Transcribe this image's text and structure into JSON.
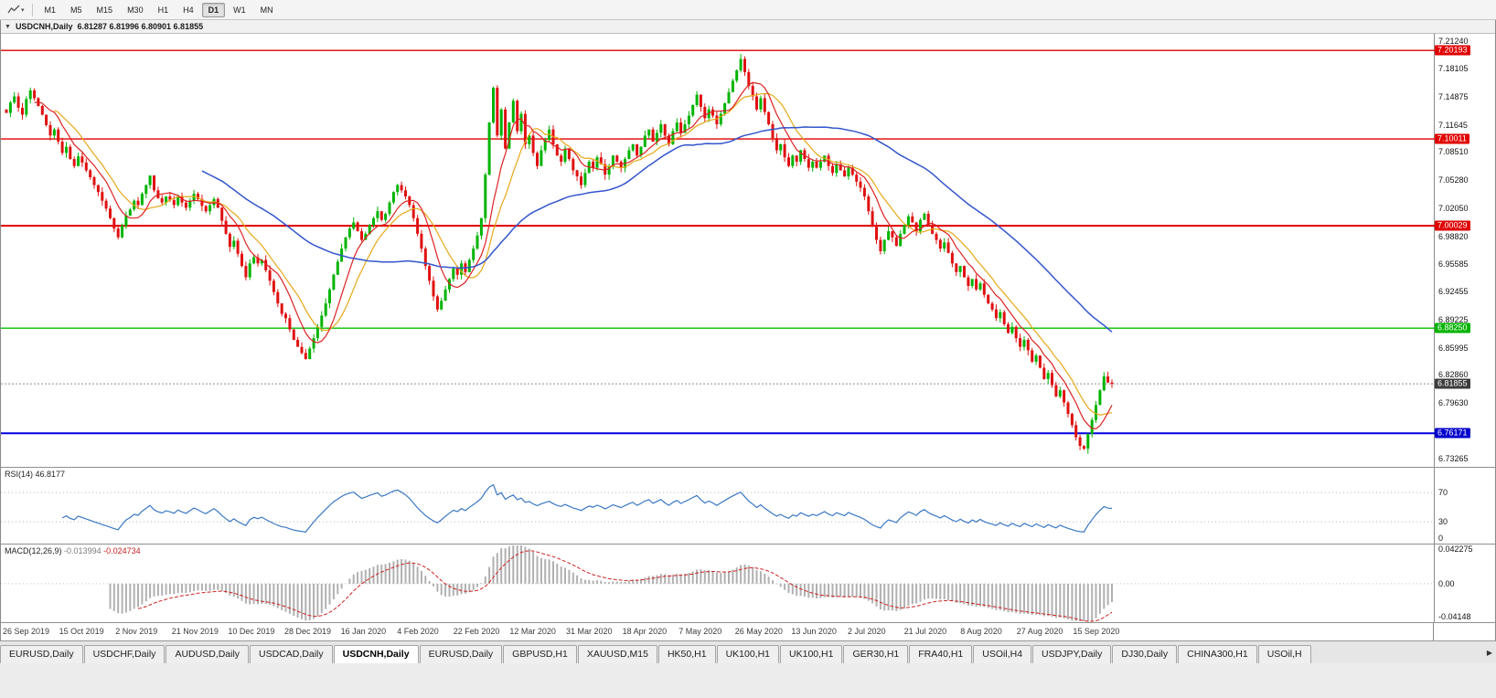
{
  "toolbar": {
    "timeframes": [
      {
        "label": "M1",
        "active": false
      },
      {
        "label": "M5",
        "active": false
      },
      {
        "label": "M15",
        "active": false
      },
      {
        "label": "M30",
        "active": false
      },
      {
        "label": "H1",
        "active": false
      },
      {
        "label": "H4",
        "active": false
      },
      {
        "label": "D1",
        "active": true
      },
      {
        "label": "W1",
        "active": false
      },
      {
        "label": "MN",
        "active": false
      }
    ]
  },
  "chart": {
    "title": "USDCNH,Daily",
    "ohlc": "6.81287 6.81996 6.80901 6.81855",
    "collapse_icon": "▼"
  },
  "price_axis": {
    "ticks": [
      "7.21240",
      "7.18105",
      "7.14875",
      "7.11645",
      "7.08510",
      "7.05280",
      "7.02050",
      "6.98820",
      "6.95585",
      "6.92455",
      "6.89225",
      "6.85995",
      "6.82860",
      "6.79630",
      "6.73265"
    ],
    "badges": [
      {
        "text": "7.20193",
        "price": 7.20193,
        "color": "#e00000"
      },
      {
        "text": "7.10011",
        "price": 7.10011,
        "color": "#e00000"
      },
      {
        "text": "7.00029",
        "price": 7.00029,
        "color": "#e00000"
      },
      {
        "text": "6.88250",
        "price": 6.8825,
        "color": "#00b300"
      },
      {
        "text": "6.81855",
        "price": 6.81855,
        "color": "#3c3c3c"
      },
      {
        "text": "6.76171",
        "price": 6.76171,
        "color": "#0000cc"
      }
    ]
  },
  "hlines": [
    {
      "price": 7.20193,
      "color": "#e00000",
      "width": 1.4,
      "dash": ""
    },
    {
      "price": 7.10011,
      "color": "#e00000",
      "width": 1.4,
      "dash": ""
    },
    {
      "price": 7.00029,
      "color": "#e00000",
      "width": 2,
      "dash": ""
    },
    {
      "price": 6.8825,
      "color": "#00c000",
      "width": 1.4,
      "dash": ""
    },
    {
      "price": 6.76171,
      "color": "#0000dd",
      "width": 2,
      "dash": ""
    },
    {
      "price": 6.81855,
      "color": "#909090",
      "width": 1,
      "dash": "2,2"
    }
  ],
  "rsi_panel": {
    "label": "RSI(14)",
    "value": "46.8177",
    "levels": [
      "70",
      "30",
      "0"
    ],
    "level_values": [
      70,
      30,
      0
    ]
  },
  "macd_panel": {
    "label": "MACD(12,26,9)",
    "value_main": "-0.013994",
    "value_signal": "-0.024734",
    "axis": [
      "0.042275",
      "0.00",
      "-0.04148"
    ],
    "axis_values": [
      0.042275,
      0.0,
      -0.04148
    ]
  },
  "time_axis": [
    "26 Sep 2019",
    "15 Oct 2019",
    "2 Nov 2019",
    "21 Nov 2019",
    "10 Dec 2019",
    "28 Dec 2019",
    "16 Jan 2020",
    "4 Feb 2020",
    "22 Feb 2020",
    "12 Mar 2020",
    "31 Mar 2020",
    "18 Apr 2020",
    "7 May 2020",
    "26 May 2020",
    "13 Jun 2020",
    "2 Jul 2020",
    "21 Jul 2020",
    "8 Aug 2020",
    "27 Aug 2020",
    "15 Sep 2020"
  ],
  "tabs": {
    "active_index": 4,
    "scroll_icon": "▶",
    "items": [
      {
        "label": "EURUSD,Daily"
      },
      {
        "label": "USDCHF,Daily"
      },
      {
        "label": "AUDUSD,Daily"
      },
      {
        "label": "USDCAD,Daily"
      },
      {
        "label": "USDCNH,Daily"
      },
      {
        "label": "EURUSD,Daily"
      },
      {
        "label": "GBPUSD,H1"
      },
      {
        "label": "XAUUSD,M15"
      },
      {
        "label": "HK50,H1"
      },
      {
        "label": "UK100,H1"
      },
      {
        "label": "UK100,H1"
      },
      {
        "label": "GER30,H1"
      },
      {
        "label": "FRA40,H1"
      },
      {
        "label": "USOil,H4"
      },
      {
        "label": "USDJPY,Daily"
      },
      {
        "label": "DJ30,Daily"
      },
      {
        "label": "CHINA300,H1"
      },
      {
        "label": "USOil,H"
      }
    ]
  },
  "colors": {
    "up": "#00b400",
    "down": "#e01010",
    "ma_fast": "#dd2222",
    "ma_mid": "#e6a817",
    "ma_slow": "#3355cc",
    "rsi_line": "#3a78c3",
    "rsi_level": "#b8b8b8",
    "macd_hist": "#b0b0b0",
    "macd_signal": "#cc2222",
    "macd_zero": "#c0c0c0"
  },
  "chart_data": {
    "type": "candlestick",
    "symbol": "USDCNH",
    "timeframe": "Daily",
    "ohlc_display": {
      "open": "6.81287",
      "high": "6.81996",
      "low": "6.80901",
      "close": "6.81855"
    },
    "price_range": [
      6.723,
      7.221
    ],
    "x_range": [
      "26 Sep 2019",
      "29 Sep 2020"
    ],
    "levels": {
      "resistance": [
        7.20193,
        7.10011,
        7.00029
      ],
      "support_green": 6.8825,
      "support_blue": 6.76171,
      "current_price": 6.81855
    },
    "indicators": {
      "rsi_period": 14,
      "rsi_value": 46.8177,
      "macd_params": [
        12,
        26,
        9
      ],
      "macd_main": -0.013994,
      "macd_signal": -0.024734
    },
    "closes": [
      7.13,
      7.142,
      7.149,
      7.136,
      7.128,
      7.146,
      7.156,
      7.147,
      7.138,
      7.128,
      7.116,
      7.104,
      7.111,
      7.097,
      7.084,
      7.091,
      7.077,
      7.069,
      7.08,
      7.073,
      7.064,
      7.056,
      7.047,
      7.039,
      7.029,
      7.02,
      7.009,
      6.997,
      6.987,
      7.0,
      7.012,
      7.019,
      7.029,
      7.024,
      7.037,
      7.047,
      7.058,
      7.041,
      7.032,
      7.027,
      7.034,
      7.03,
      7.024,
      7.034,
      7.027,
      7.021,
      7.029,
      7.037,
      7.031,
      7.023,
      7.017,
      7.024,
      7.031,
      7.021,
      7.006,
      6.991,
      6.976,
      6.983,
      6.968,
      6.954,
      6.941,
      6.957,
      6.964,
      6.957,
      6.961,
      6.949,
      6.937,
      6.924,
      6.911,
      6.899,
      6.894,
      6.881,
      6.869,
      6.861,
      6.854,
      6.847,
      6.859,
      6.871,
      6.884,
      6.897,
      6.911,
      6.927,
      6.944,
      6.959,
      6.974,
      6.987,
      6.997,
      7.004,
      6.994,
      6.984,
      6.991,
      7.001,
      7.009,
      7.017,
      7.007,
      7.014,
      7.027,
      7.039,
      7.047,
      7.041,
      7.034,
      7.024,
      7.009,
      6.991,
      6.974,
      6.954,
      6.937,
      6.919,
      6.904,
      6.914,
      6.927,
      6.939,
      6.951,
      6.944,
      6.957,
      6.947,
      6.961,
      6.974,
      6.989,
      7.009,
      7.059,
      7.119,
      7.159,
      7.104,
      7.134,
      7.089,
      7.119,
      7.144,
      7.109,
      7.129,
      7.094,
      7.104,
      7.084,
      7.069,
      7.087,
      7.099,
      7.111,
      7.094,
      7.081,
      7.074,
      7.089,
      7.077,
      7.064,
      7.057,
      7.047,
      7.061,
      7.074,
      7.067,
      7.079,
      7.071,
      7.059,
      7.069,
      7.081,
      7.074,
      7.067,
      7.077,
      7.087,
      7.094,
      7.081,
      7.091,
      7.104,
      7.111,
      7.097,
      7.107,
      7.117,
      7.104,
      7.094,
      7.109,
      7.119,
      7.107,
      7.117,
      7.127,
      7.139,
      7.151,
      7.137,
      7.124,
      7.134,
      7.127,
      7.117,
      7.129,
      7.141,
      7.154,
      7.167,
      7.179,
      7.192,
      7.177,
      7.161,
      7.149,
      7.134,
      7.147,
      7.131,
      7.117,
      7.101,
      7.087,
      7.094,
      7.079,
      7.069,
      7.081,
      7.074,
      7.087,
      7.077,
      7.067,
      7.074,
      7.067,
      7.074,
      7.081,
      7.069,
      7.061,
      7.071,
      7.064,
      7.057,
      7.067,
      7.059,
      7.051,
      7.044,
      7.034,
      7.017,
      6.999,
      6.984,
      6.971,
      6.984,
      6.994,
      6.987,
      6.977,
      6.991,
      7.001,
      7.011,
      7.004,
      6.994,
      7.007,
      7.014,
      7.001,
      6.991,
      6.984,
      6.974,
      6.981,
      6.969,
      6.957,
      6.947,
      6.954,
      6.941,
      6.931,
      6.939,
      6.927,
      6.934,
      6.921,
      6.911,
      6.904,
      6.894,
      6.901,
      6.887,
      6.877,
      6.884,
      6.871,
      6.861,
      6.869,
      6.857,
      6.844,
      6.851,
      6.837,
      6.824,
      6.831,
      6.817,
      6.804,
      6.811,
      6.797,
      6.784,
      6.771,
      6.757,
      6.747,
      6.744,
      6.761,
      6.777,
      6.794,
      6.811,
      6.827,
      6.82,
      6.8186
    ]
  }
}
